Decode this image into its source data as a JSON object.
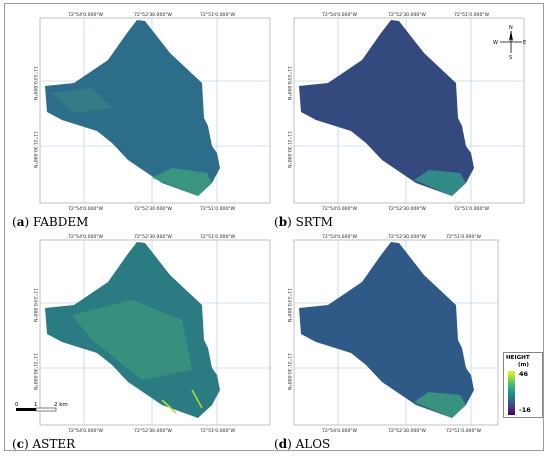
{
  "figure": {
    "panels": [
      {
        "id": "a",
        "letter": "a",
        "label": "FABDEM",
        "lon_labels": [
          "72°54'0.000\"W",
          "72°52'30.000\"W",
          "72°51'0.000\"W"
        ],
        "lat_labels": [
          "11°33'0.000\"N",
          "11°31'30.000\"N"
        ],
        "dominant": "#2c6d8a"
      },
      {
        "id": "b",
        "letter": "b",
        "label": "SRTM",
        "lon_labels": [
          "72°54'0.000\"W",
          "72°52'30.000\"W",
          "72°51'0.000\"W"
        ],
        "lat_labels": [
          "11°33'0.000\"N",
          "11°31'30.000\"N"
        ],
        "dominant": "#34497e"
      },
      {
        "id": "c",
        "letter": "c",
        "label": "ASTER",
        "lon_labels": [
          "72°54'0.000\"W",
          "72°52'30.000\"W",
          "72°51'0.000\"W"
        ],
        "lat_labels": [
          "11°33'0.000\"N",
          "11°31'30.000\"N"
        ],
        "dominant": "#2a7c82"
      },
      {
        "id": "d",
        "letter": "d",
        "label": "ALOS",
        "lon_labels": [
          "72°54'0.000\"W",
          "72°52'30.000\"W",
          "72°51'0.000\"W"
        ],
        "lat_labels": [
          "11°33'0.000\"N",
          "11°31'30.000\"N"
        ],
        "dominant": "#2f5a87"
      }
    ],
    "north_arrow": {
      "n": "N",
      "e": "E",
      "s": "S",
      "w": "W"
    },
    "scale_bar": {
      "labels": [
        "0",
        "1",
        "2 km"
      ]
    },
    "legend": {
      "title": "HEIGHT",
      "unit": "(m)",
      "max": "46",
      "min": "-16",
      "colors": [
        "#fde725",
        "#35b779",
        "#21918c",
        "#31688e",
        "#440154"
      ]
    }
  }
}
